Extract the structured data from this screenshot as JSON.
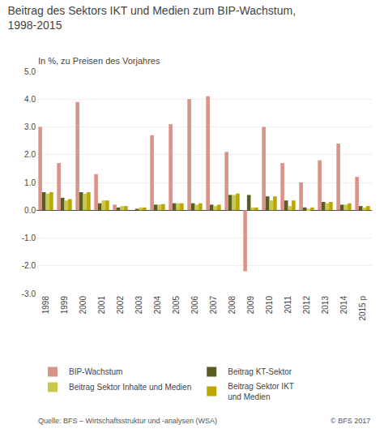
{
  "chart_data": {
    "type": "bar",
    "title": "Beitrag des Sektors IKT und Medien zum BIP-Wachstum,\n1998-2015",
    "subtitle": "In %, zu Preisen des Vorjahres",
    "annotations": [
      "Quelle: BFS – Wirtschaftsstruktur und -analysen (WSA)",
      "© BFS 2017"
    ],
    "categories": [
      "1998",
      "1999",
      "2000",
      "2001",
      "2002",
      "2003",
      "2004",
      "2005",
      "2006",
      "2007",
      "2008",
      "2009",
      "2010",
      "2011",
      "2012",
      "2013",
      "2014",
      "2015 p"
    ],
    "series": [
      {
        "name": "BIP-Wachstum",
        "color": "#d9948a",
        "values": [
          3.0,
          1.7,
          3.9,
          1.3,
          0.2,
          0.0,
          2.7,
          3.1,
          4.0,
          4.1,
          2.1,
          -2.2,
          3.0,
          1.7,
          1.0,
          1.8,
          2.4,
          1.2
        ]
      },
      {
        "name": "Beitrag KT-Sektor",
        "color": "#5a5c24",
        "values": [
          0.65,
          0.45,
          0.65,
          0.25,
          0.1,
          0.05,
          0.2,
          0.25,
          0.25,
          0.2,
          0.55,
          0.55,
          0.5,
          0.35,
          0.1,
          0.3,
          0.2,
          0.15
        ]
      },
      {
        "name": "Beitrag Sektor Inhalte und Medien",
        "color": "#c8c84a",
        "values": [
          0.6,
          0.35,
          0.6,
          0.35,
          0.15,
          0.1,
          0.2,
          0.25,
          0.2,
          0.15,
          0.55,
          0.1,
          0.35,
          0.15,
          0.05,
          0.25,
          0.2,
          0.1
        ]
      },
      {
        "name": "Beitrag Sektor IKT\nund Medien",
        "color": "#b8a800",
        "values": [
          0.65,
          0.4,
          0.65,
          0.35,
          0.15,
          0.1,
          0.22,
          0.25,
          0.25,
          0.2,
          0.6,
          0.1,
          0.5,
          0.35,
          0.1,
          0.3,
          0.25,
          0.15
        ]
      }
    ],
    "ylim": [
      -3.0,
      5.0
    ],
    "yticks": [
      {
        "value": -3.0,
        "label": "-3.0"
      },
      {
        "value": -2.0,
        "label": "-2.0"
      },
      {
        "value": -1.0,
        "label": "-1.0"
      },
      {
        "value": 0.0,
        "label": "0.0"
      },
      {
        "value": 1.0,
        "label": "1.0"
      },
      {
        "value": 2.0,
        "label": "2.0"
      },
      {
        "value": 3.0,
        "label": "3.0"
      },
      {
        "value": 4.0,
        "label": "4.0"
      },
      {
        "value": 5.0,
        "label": "5.0"
      }
    ],
    "grid": true,
    "legend": "lower left"
  }
}
